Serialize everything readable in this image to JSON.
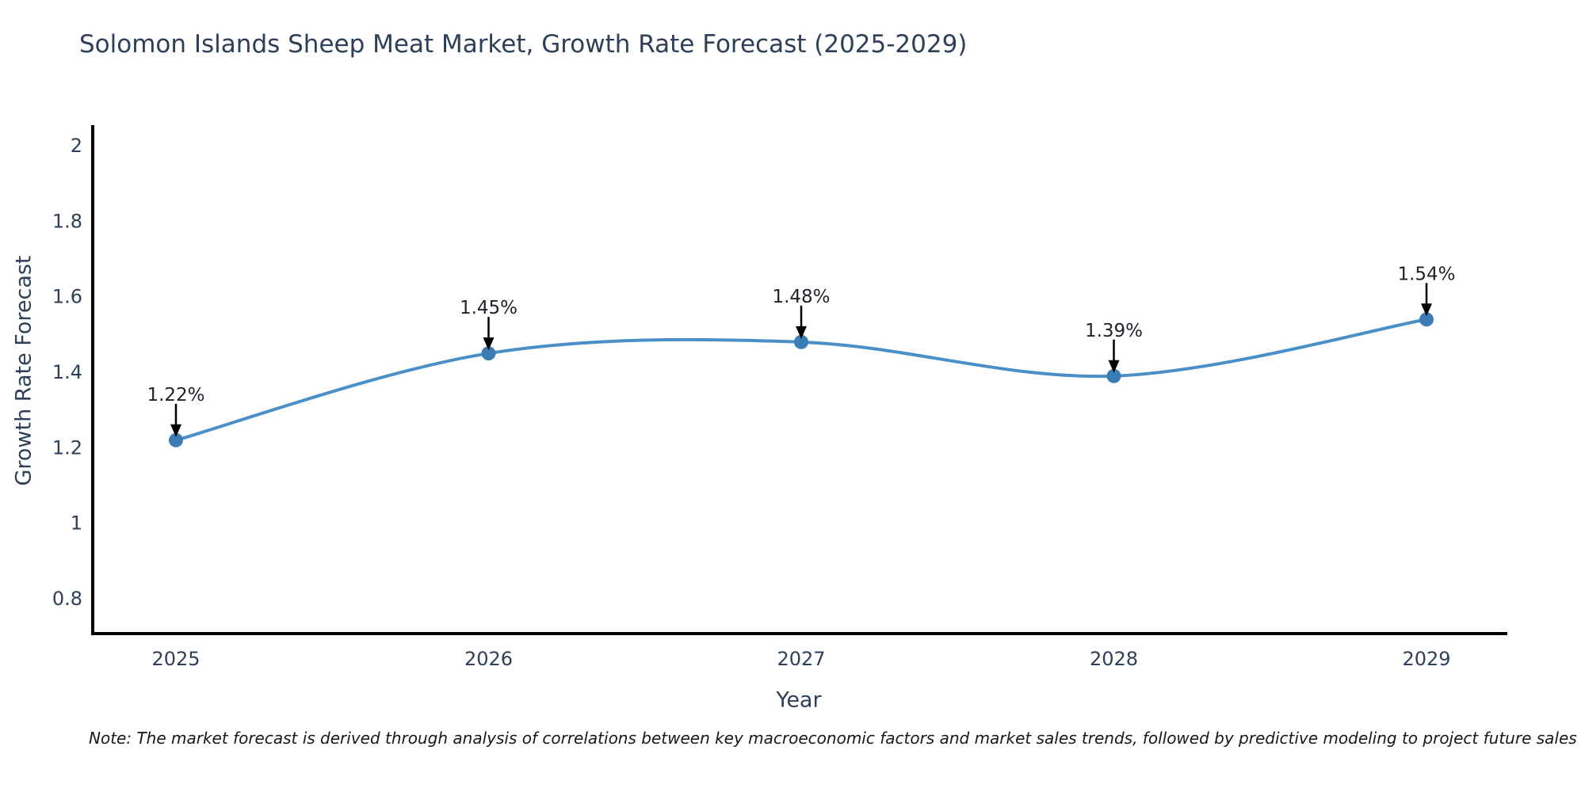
{
  "title": "Solomon Islands Sheep Meat Market, Growth Rate Forecast (2025-2029)",
  "note": "Note: The market forecast is derived through analysis of correlations between key macroeconomic factors and market sales trends, followed by predictive modeling to project future sales",
  "chart_data": {
    "type": "line",
    "title": "Solomon Islands Sheep Meat Market, Growth Rate Forecast (2025-2029)",
    "x": [
      2025,
      2026,
      2027,
      2028,
      2029
    ],
    "xtick_labels": [
      "2025",
      "2026",
      "2027",
      "2028",
      "2029"
    ],
    "series": [
      {
        "name": "Growth Rate Forecast",
        "values": [
          1.22,
          1.45,
          1.48,
          1.39,
          1.54
        ]
      }
    ],
    "point_labels": [
      "1.22%",
      "1.45%",
      "1.48%",
      "1.39%",
      "1.54%"
    ],
    "xlabel": "Year",
    "ylabel": "Growth Rate Forecast",
    "yticks": [
      0.8,
      1,
      1.2,
      1.4,
      1.6,
      1.8,
      2
    ],
    "ytick_labels": [
      "0.8",
      "1",
      "1.2",
      "1.4",
      "1.6",
      "1.8",
      "2"
    ],
    "ylim": [
      0.71,
      2.06
    ],
    "xlim": [
      2024.73,
      2029.26
    ],
    "grid": false,
    "legend_position": "none",
    "line_shape": "spline",
    "annotation_arrows": true,
    "colors": {
      "line": "#4a8fc7",
      "marker": "#3c7cb4",
      "axis": "#000000",
      "arrow": "#000000",
      "title_text": "#2e4058",
      "tick_text": "#2e4058",
      "annotation_text": "#1f2329",
      "note_text": "#15181c",
      "background": "#ffffff"
    }
  }
}
